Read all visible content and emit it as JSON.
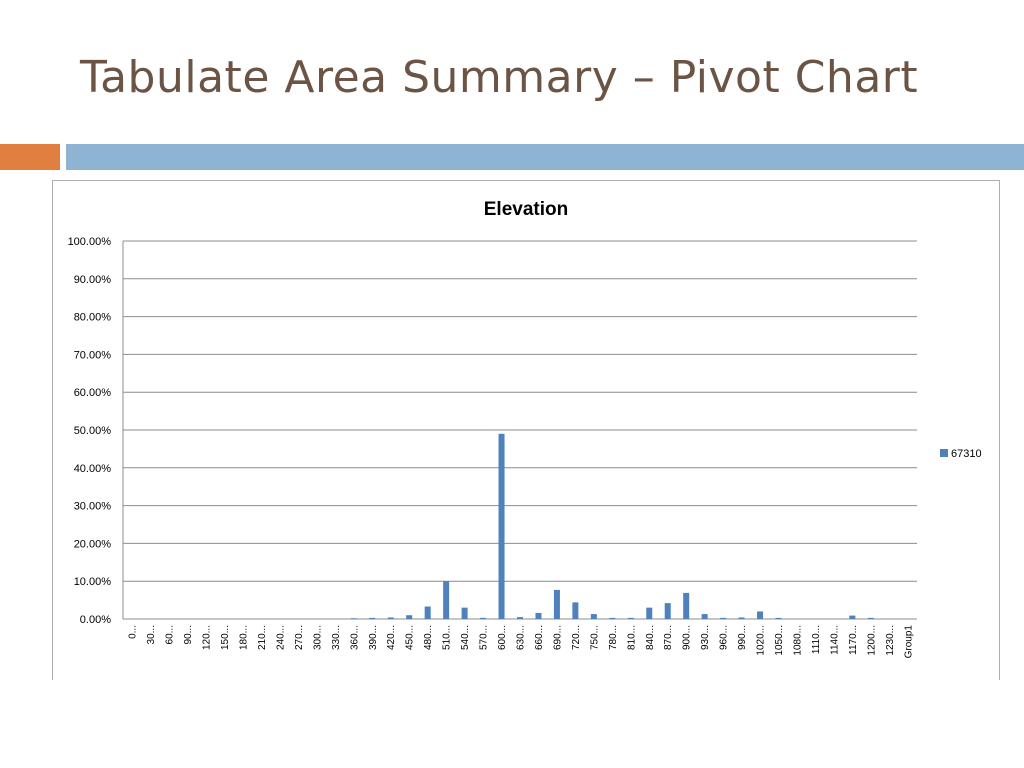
{
  "slide": {
    "title": "Tabulate Area Summary – Pivot Chart",
    "colors": {
      "title": "#6b5444",
      "accent_orange": "#e07f3f",
      "accent_blue": "#8fb3d3"
    }
  },
  "chart_data": {
    "type": "bar",
    "title": "Elevation",
    "xlabel": "",
    "ylabel": "",
    "ylim": [
      0,
      100
    ],
    "y_tick_labels": [
      "0.00%",
      "10.00%",
      "20.00%",
      "30.00%",
      "40.00%",
      "50.00%",
      "60.00%",
      "70.00%",
      "80.00%",
      "90.00%",
      "100.00%"
    ],
    "grid": true,
    "legend_position": "right",
    "bar_color": "#4f81bd",
    "categories": [
      "0...",
      "30...",
      "60...",
      "90...",
      "120...",
      "150...",
      "180...",
      "210...",
      "240...",
      "270...",
      "300...",
      "330...",
      "360...",
      "390...",
      "420...",
      "450...",
      "480...",
      "510...",
      "540...",
      "570...",
      "600...",
      "630...",
      "660...",
      "690...",
      "720...",
      "750...",
      "780...",
      "810...",
      "840...",
      "870...",
      "900...",
      "930...",
      "960...",
      "990...",
      "1020...",
      "1050...",
      "1080...",
      "1110...",
      "1140...",
      "1170...",
      "1200...",
      "1230...",
      "Group1"
    ],
    "series": [
      {
        "name": "67310",
        "values": [
          0,
          0,
          0,
          0,
          0,
          0,
          0,
          0,
          0,
          0,
          0,
          0,
          0.2,
          0.3,
          0.4,
          1.0,
          3.3,
          10.0,
          3.0,
          0.3,
          49.0,
          0.5,
          1.6,
          7.7,
          4.4,
          1.3,
          0.3,
          0.3,
          3.0,
          4.2,
          6.9,
          1.3,
          0.3,
          0.4,
          2.0,
          0.3,
          0,
          0,
          0,
          0.9,
          0.3,
          0,
          0
        ]
      }
    ]
  }
}
